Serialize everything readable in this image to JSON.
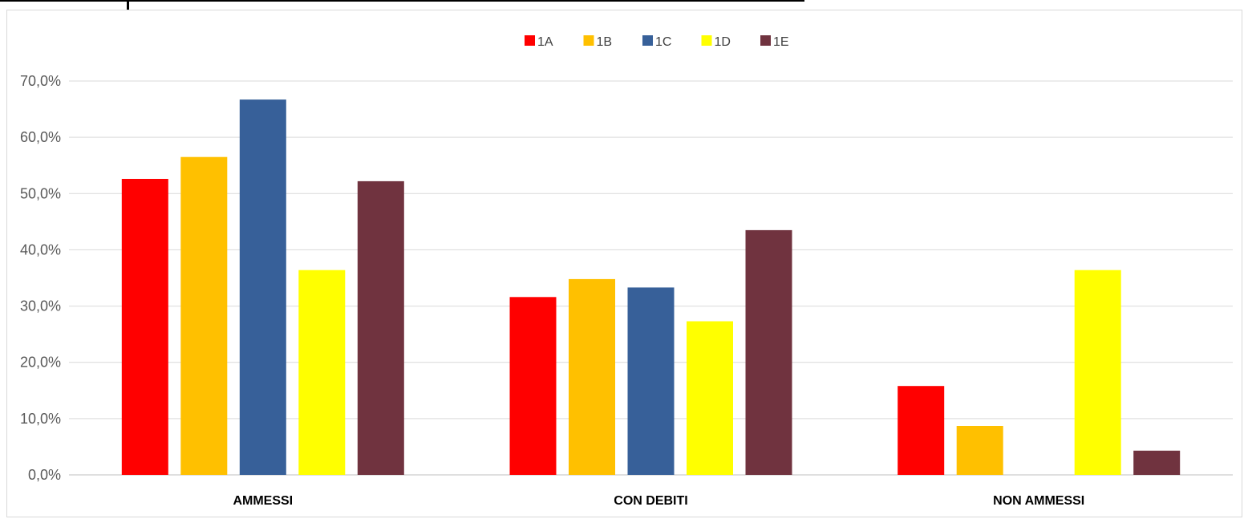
{
  "chart_data": {
    "type": "bar",
    "categories": [
      "AMMESSI",
      "CON DEBITI",
      "NON AMMESSI"
    ],
    "series": [
      {
        "name": "1A",
        "color": "#ff0000",
        "values": [
          52.6,
          31.6,
          15.8
        ]
      },
      {
        "name": "1B",
        "color": "#ffc000",
        "values": [
          56.5,
          34.8,
          8.7
        ]
      },
      {
        "name": "1C",
        "color": "#376099",
        "values": [
          66.7,
          33.3,
          0
        ]
      },
      {
        "name": "1D",
        "color": "#ffff00",
        "values": [
          36.4,
          27.3,
          36.4
        ]
      },
      {
        "name": "1E",
        "color": "#70333f",
        "values": [
          52.2,
          43.5,
          4.3
        ]
      }
    ],
    "ylim": [
      0,
      70
    ],
    "yticks": [
      0,
      10,
      20,
      30,
      40,
      50,
      60,
      70
    ],
    "ytick_labels": [
      "0,0%",
      "10,0%",
      "20,0%",
      "30,0%",
      "40,0%",
      "50,0%",
      "60,0%",
      "70,0%"
    ],
    "grid": true,
    "legend_position": "top-center"
  }
}
